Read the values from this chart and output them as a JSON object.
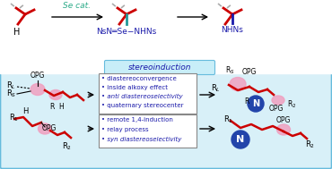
{
  "bg_color": "#ffffff",
  "red": "#cc0000",
  "blue": "#1a1aaa",
  "teal": "#2aaa88",
  "pink": "#f0a0c0",
  "pink_light": "#f8d0e0",
  "gray_dash": "#999999",
  "light_blue_bg": "#d8f0f8",
  "light_blue_border": "#66bbdd",
  "stereo_box_bg": "#c8eef8",
  "stereo_box_border": "#66bbdd",
  "text_box_border": "#888888",
  "n_circle_color": "#2244aa",
  "bullet_top": [
    "diastereoconvergence",
    "inside alkoxy effect",
    "anti diastereoselectivity",
    "quaternary stereocenter"
  ],
  "bullet_bottom": [
    "remote 1,4-induction",
    "relay process",
    "syn diastereoselectivity"
  ]
}
